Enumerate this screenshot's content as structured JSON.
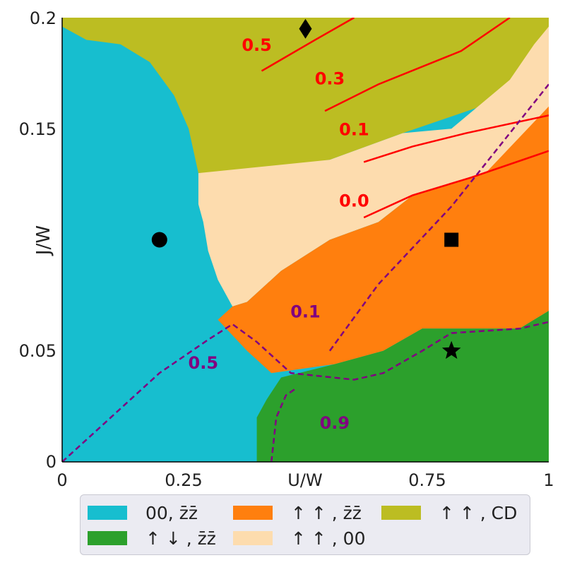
{
  "chart_data": {
    "type": "heatmap",
    "title": "",
    "xlabel": "U/W",
    "ylabel": "J/W",
    "xlim": [
      0,
      1
    ],
    "ylim": [
      0,
      0.2
    ],
    "xticks": [
      "0",
      "0.25",
      "U/W",
      "0.75",
      "1"
    ],
    "yticks": [
      "0",
      "0.05",
      "J/W",
      "0.15",
      "0.2"
    ],
    "phases": [
      {
        "id": "00_zz",
        "label": "00, z̄z̄",
        "color": "#17becf"
      },
      {
        "id": "ud_zz",
        "label": "↑ ↓ , z̄z̄",
        "color": "#2ca02c"
      },
      {
        "id": "uu_zz",
        "label": "↑ ↑ , z̄z̄",
        "color": "#ff7f0e"
      },
      {
        "id": "uu_00",
        "label": "↑ ↑ , 00",
        "color": "#fddcae"
      },
      {
        "id": "uu_cd",
        "label": "↑ ↑ , CD",
        "color": "#bcbd22"
      }
    ],
    "regions": [
      {
        "phase": "00_zz",
        "points": [
          [
            0,
            0
          ],
          [
            1,
            0
          ],
          [
            1,
            0.2
          ],
          [
            0,
            0.2
          ]
        ]
      },
      {
        "phase": "uu_cd",
        "points": [
          [
            0,
            0.2
          ],
          [
            1,
            0.2
          ],
          [
            1,
            0.186
          ],
          [
            0.965,
            0.178
          ],
          [
            0.86,
            0.16
          ],
          [
            0.7,
            0.148
          ],
          [
            0.55,
            0.136
          ],
          [
            0.35,
            0.13
          ],
          [
            0.3,
            0.128
          ],
          [
            0.28,
            0.13
          ],
          [
            0.26,
            0.15
          ],
          [
            0.23,
            0.165
          ],
          [
            0.18,
            0.18
          ],
          [
            0.12,
            0.188
          ],
          [
            0.05,
            0.19
          ],
          [
            0,
            0.196
          ]
        ]
      },
      {
        "phase": "uu_00",
        "points": [
          [
            0.28,
            0.13
          ],
          [
            0.55,
            0.136
          ],
          [
            0.7,
            0.148
          ],
          [
            0.8,
            0.15
          ],
          [
            0.92,
            0.172
          ],
          [
            0.97,
            0.188
          ],
          [
            1,
            0.196
          ],
          [
            1,
            0.155
          ],
          [
            0.87,
            0.13
          ],
          [
            0.72,
            0.12
          ],
          [
            0.65,
            0.108
          ],
          [
            0.55,
            0.1
          ],
          [
            0.45,
            0.086
          ],
          [
            0.38,
            0.072
          ],
          [
            0.35,
            0.07
          ],
          [
            0.32,
            0.082
          ],
          [
            0.3,
            0.095
          ],
          [
            0.29,
            0.108
          ],
          [
            0.28,
            0.116
          ]
        ]
      },
      {
        "phase": "uu_zz",
        "points": [
          [
            0.35,
            0.07
          ],
          [
            0.38,
            0.072
          ],
          [
            0.45,
            0.086
          ],
          [
            0.55,
            0.1
          ],
          [
            0.65,
            0.108
          ],
          [
            0.72,
            0.12
          ],
          [
            0.87,
            0.13
          ],
          [
            1,
            0.16
          ],
          [
            1,
            0.068
          ],
          [
            0.94,
            0.06
          ],
          [
            0.74,
            0.06
          ],
          [
            0.66,
            0.05
          ],
          [
            0.56,
            0.044
          ],
          [
            0.43,
            0.04
          ],
          [
            0.38,
            0.05
          ],
          [
            0.32,
            0.064
          ]
        ]
      },
      {
        "phase": "ud_zz",
        "points": [
          [
            0.4,
            0
          ],
          [
            1,
            0
          ],
          [
            1,
            0.068
          ],
          [
            0.94,
            0.06
          ],
          [
            0.74,
            0.06
          ],
          [
            0.66,
            0.05
          ],
          [
            0.56,
            0.044
          ],
          [
            0.45,
            0.038
          ],
          [
            0.42,
            0.028
          ],
          [
            0.4,
            0.02
          ]
        ]
      }
    ],
    "contours_red": [
      {
        "label": "0.5",
        "label_at": [
          0.4,
          0.185
        ],
        "points": [
          [
            0.41,
            0.176
          ],
          [
            0.52,
            0.19
          ],
          [
            0.6,
            0.2
          ]
        ]
      },
      {
        "label": "0.3",
        "label_at": [
          0.55,
          0.17
        ],
        "points": [
          [
            0.54,
            0.158
          ],
          [
            0.65,
            0.17
          ],
          [
            0.82,
            0.185
          ],
          [
            0.92,
            0.2
          ]
        ]
      },
      {
        "label": "0.1",
        "label_at": [
          0.6,
          0.147
        ],
        "points": [
          [
            0.62,
            0.135
          ],
          [
            0.72,
            0.142
          ],
          [
            0.83,
            0.148
          ],
          [
            1,
            0.156
          ]
        ]
      },
      {
        "label": "0.0",
        "label_at": [
          0.6,
          0.115
        ],
        "points": [
          [
            0.62,
            0.11
          ],
          [
            0.72,
            0.12
          ],
          [
            0.84,
            0.128
          ],
          [
            1,
            0.14
          ]
        ]
      }
    ],
    "contours_purple": [
      {
        "label": "0.1",
        "label_at": [
          0.5,
          0.065
        ],
        "points": [
          [
            0.55,
            0.05
          ],
          [
            0.65,
            0.08
          ],
          [
            0.8,
            0.115
          ],
          [
            1,
            0.17
          ]
        ]
      },
      {
        "label": "0.5",
        "label_at": [
          0.29,
          0.042
        ],
        "points": [
          [
            0,
            0
          ],
          [
            0.1,
            0.02
          ],
          [
            0.2,
            0.04
          ],
          [
            0.3,
            0.055
          ],
          [
            0.35,
            0.062
          ],
          [
            0.4,
            0.054
          ],
          [
            0.47,
            0.04
          ],
          [
            0.6,
            0.037
          ],
          [
            0.66,
            0.04
          ],
          [
            0.74,
            0.05
          ],
          [
            0.8,
            0.058
          ],
          [
            0.94,
            0.06
          ],
          [
            1,
            0.063
          ]
        ]
      },
      {
        "label": "0.9",
        "label_at": [
          0.56,
          0.015
        ],
        "points": [
          [
            0.43,
            0
          ],
          [
            0.44,
            0.02
          ],
          [
            0.46,
            0.03
          ],
          [
            0.48,
            0.033
          ]
        ]
      }
    ],
    "markers": [
      {
        "shape": "circle",
        "x": 0.2,
        "y": 0.1
      },
      {
        "shape": "diamond",
        "x": 0.5,
        "y": 0.195
      },
      {
        "shape": "square",
        "x": 0.8,
        "y": 0.1
      },
      {
        "shape": "star",
        "x": 0.8,
        "y": 0.05
      }
    ],
    "legend_position": "bottom"
  }
}
